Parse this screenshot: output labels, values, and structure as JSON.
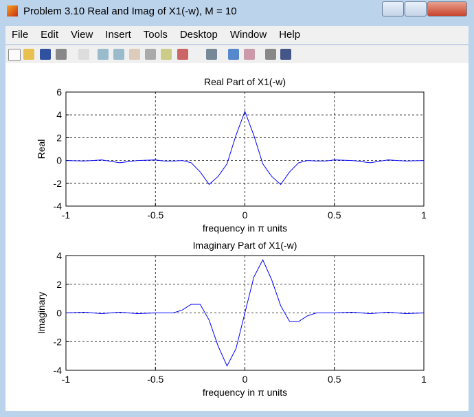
{
  "window": {
    "title": "Problem 3.10 Real and Imag of X1(-w), M = 10"
  },
  "menu": [
    "File",
    "Edit",
    "View",
    "Insert",
    "Tools",
    "Desktop",
    "Window",
    "Help"
  ],
  "chart_data": [
    {
      "type": "line",
      "title": "Real Part of X1(-w)",
      "xlabel": "frequency in π units",
      "ylabel": "Real",
      "x": [
        -1,
        -0.9,
        -0.8,
        -0.7,
        -0.6,
        -0.5,
        -0.45,
        -0.4,
        -0.35,
        -0.3,
        -0.25,
        -0.2,
        -0.15,
        -0.1,
        -0.05,
        0,
        0.05,
        0.1,
        0.15,
        0.2,
        0.25,
        0.3,
        0.35,
        0.4,
        0.45,
        0.5,
        0.6,
        0.7,
        0.8,
        0.9,
        1
      ],
      "series": [
        {
          "color": "#0000ff",
          "values": [
            0,
            -0.05,
            0.05,
            -0.2,
            0,
            0.05,
            -0.05,
            -0.05,
            0,
            -0.2,
            -1,
            -2.1,
            -1.4,
            -0.3,
            2.2,
            4.3,
            2.2,
            -0.3,
            -1.4,
            -2.1,
            -1,
            -0.2,
            0,
            -0.05,
            -0.05,
            0.05,
            0,
            -0.2,
            0.05,
            -0.05,
            0
          ]
        }
      ],
      "xlim": [
        -1,
        1
      ],
      "ylim": [
        -4,
        6
      ],
      "xticks": [
        -1,
        -0.5,
        0,
        0.5,
        1
      ],
      "yticks": [
        -4,
        -2,
        0,
        2,
        4,
        6
      ],
      "grid": true
    },
    {
      "type": "line",
      "title": "Imaginary Part of X1(-w)",
      "xlabel": "frequency in π units",
      "ylabel": "Imaginary",
      "x": [
        -1,
        -0.9,
        -0.8,
        -0.7,
        -0.6,
        -0.5,
        -0.45,
        -0.4,
        -0.35,
        -0.3,
        -0.25,
        -0.2,
        -0.15,
        -0.1,
        -0.05,
        0,
        0.05,
        0.1,
        0.15,
        0.2,
        0.25,
        0.3,
        0.35,
        0.4,
        0.45,
        0.5,
        0.6,
        0.7,
        0.8,
        0.9,
        1
      ],
      "series": [
        {
          "color": "#0000ff",
          "values": [
            0,
            0.05,
            -0.05,
            0.05,
            -0.05,
            0,
            0,
            0,
            0.2,
            0.6,
            0.6,
            -0.5,
            -2.3,
            -3.7,
            -2.5,
            0,
            2.5,
            3.7,
            2.3,
            0.5,
            -0.6,
            -0.6,
            -0.2,
            0,
            0,
            0,
            0.05,
            -0.05,
            0.05,
            -0.05,
            0
          ]
        }
      ],
      "xlim": [
        -1,
        1
      ],
      "ylim": [
        -4,
        4
      ],
      "xticks": [
        -1,
        -0.5,
        0,
        0.5,
        1
      ],
      "yticks": [
        -4,
        -2,
        0,
        2,
        4
      ],
      "grid": true
    }
  ]
}
